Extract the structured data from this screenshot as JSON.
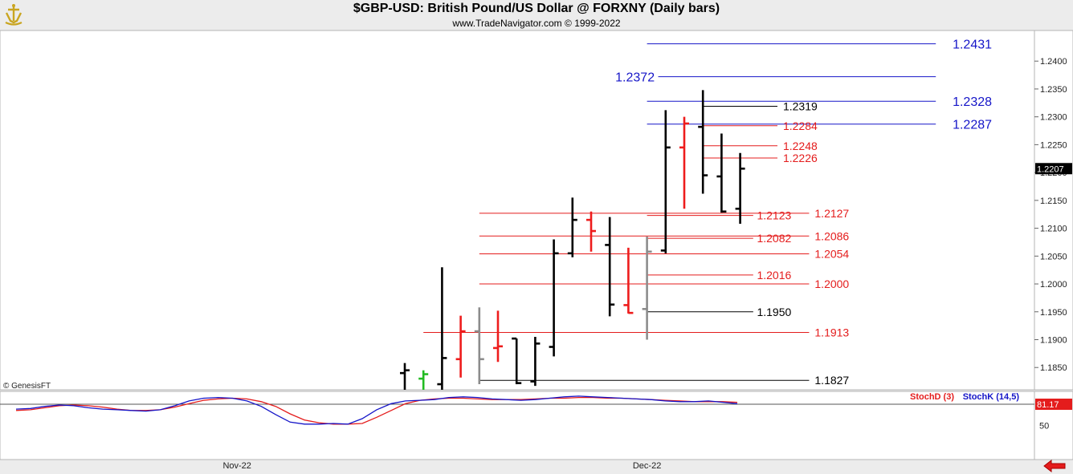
{
  "header": {
    "title": "$GBP-USD:  British Pound/US Dollar @ FORXNY  (Daily bars)",
    "subtitle": "www.TradeNavigator.com © 1999-2022",
    "logo_icon": "trade-navigator-logo-icon"
  },
  "colors": {
    "up_bar": "#000000",
    "down_bar": "#ee1c1c",
    "neutral_bar": "#8c8c8c",
    "blue_level": "#1515c8",
    "red_level": "#e41c1c",
    "black_level": "#000000",
    "stoch_d": "#e41c1c",
    "stoch_k": "#1515c8",
    "background": "#ffffff",
    "frame": "#ececec"
  },
  "chart_data": [
    {
      "type": "ohlc",
      "title": "$GBP-USD:  British Pound/US Dollar @ FORXNY  (Daily bars)",
      "watermark": "© GenesisFT",
      "ylim": [
        1.181,
        1.2455
      ],
      "yticks": [
        "1.1850",
        "1.1900",
        "1.1950",
        "1.2000",
        "1.2050",
        "1.2100",
        "1.2150",
        "1.2200",
        "1.2250",
        "1.2300",
        "1.2350",
        "1.2400"
      ],
      "last_price": "1.2207",
      "x_labels": [
        {
          "label": "Nov-22",
          "bar": -9
        },
        {
          "label": "Dec-22",
          "bar": 13
        }
      ],
      "bars": [
        {
          "o": 1.184,
          "h": 1.1858,
          "l": 1.181,
          "c": 1.1845,
          "color": "up"
        },
        {
          "o": 1.183,
          "h": 1.1845,
          "l": 1.181,
          "c": 1.1838,
          "color": "green"
        },
        {
          "o": 1.182,
          "h": 1.203,
          "l": 1.181,
          "c": 1.1867,
          "color": "up"
        },
        {
          "o": 1.1865,
          "h": 1.1943,
          "l": 1.1832,
          "c": 1.1915,
          "color": "down"
        },
        {
          "o": 1.1915,
          "h": 1.1958,
          "l": 1.182,
          "c": 1.1865,
          "color": "neutral"
        },
        {
          "o": 1.1885,
          "h": 1.1952,
          "l": 1.186,
          "c": 1.1888,
          "color": "down"
        },
        {
          "o": 1.1902,
          "h": 1.1902,
          "l": 1.182,
          "c": 1.1822,
          "color": "up"
        },
        {
          "o": 1.1825,
          "h": 1.1905,
          "l": 1.1817,
          "c": 1.1893,
          "color": "up"
        },
        {
          "o": 1.1887,
          "h": 1.208,
          "l": 1.187,
          "c": 1.2055,
          "color": "up"
        },
        {
          "o": 1.2055,
          "h": 1.2155,
          "l": 1.2048,
          "c": 1.2115,
          "color": "up"
        },
        {
          "o": 1.2115,
          "h": 1.213,
          "l": 1.2058,
          "c": 1.2095,
          "color": "down"
        },
        {
          "o": 1.207,
          "h": 1.212,
          "l": 1.1942,
          "c": 1.1963,
          "color": "up"
        },
        {
          "o": 1.1962,
          "h": 1.2065,
          "l": 1.1947,
          "c": 1.1948,
          "color": "down"
        },
        {
          "o": 1.1955,
          "h": 1.2085,
          "l": 1.19,
          "c": 1.2058,
          "color": "neutral"
        },
        {
          "o": 1.206,
          "h": 1.2312,
          "l": 1.2055,
          "c": 1.2245,
          "color": "up"
        },
        {
          "o": 1.2245,
          "h": 1.23,
          "l": 1.2135,
          "c": 1.2288,
          "color": "down"
        },
        {
          "o": 1.2282,
          "h": 1.2348,
          "l": 1.2162,
          "c": 1.2195,
          "color": "up"
        },
        {
          "o": 1.2193,
          "h": 1.227,
          "l": 1.2128,
          "c": 1.213,
          "color": "up"
        },
        {
          "o": 1.2135,
          "h": 1.2235,
          "l": 1.2108,
          "c": 1.2207,
          "color": "up"
        }
      ],
      "levels": [
        {
          "price": "1.2431",
          "color": "blue",
          "from_bar": 13,
          "to_bar": 28.5,
          "label_bar": 29.4,
          "size": 16
        },
        {
          "price": "1.2372",
          "color": "blue",
          "from_bar": 13.6,
          "to_bar": 28.5,
          "label_bar": 11.3,
          "size": 16
        },
        {
          "price": "1.2328",
          "color": "blue",
          "from_bar": 13,
          "to_bar": 28.5,
          "label_bar": 29.4,
          "size": 16
        },
        {
          "price": "1.2287",
          "color": "blue",
          "from_bar": 13,
          "to_bar": 28.5,
          "label_bar": 29.4,
          "size": 16
        },
        {
          "price": "1.2319",
          "color": "black",
          "from_bar": 16,
          "to_bar": 20,
          "label_bar": 20.3,
          "size": 14
        },
        {
          "price": "1.2284",
          "color": "red",
          "from_bar": 16,
          "to_bar": 20,
          "label_bar": 20.3,
          "size": 14
        },
        {
          "price": "1.2248",
          "color": "red",
          "from_bar": 16,
          "to_bar": 20,
          "label_bar": 20.3,
          "size": 14
        },
        {
          "price": "1.2226",
          "color": "red",
          "from_bar": 16,
          "to_bar": 20,
          "label_bar": 20.3,
          "size": 14
        },
        {
          "price": "1.2127",
          "color": "red",
          "from_bar": 4,
          "to_bar": 21.7,
          "label_bar": 22,
          "size": 14
        },
        {
          "price": "1.2123",
          "color": "red",
          "from_bar": 13,
          "to_bar": 18.7,
          "label_bar": 18.9,
          "size": 14
        },
        {
          "price": "1.2086",
          "color": "red",
          "from_bar": 4,
          "to_bar": 21.7,
          "label_bar": 22,
          "size": 14
        },
        {
          "price": "1.2082",
          "color": "red",
          "from_bar": 13,
          "to_bar": 18.7,
          "label_bar": 18.9,
          "size": 14
        },
        {
          "price": "1.2054",
          "color": "red",
          "from_bar": 4,
          "to_bar": 21.7,
          "label_bar": 22,
          "size": 14
        },
        {
          "price": "1.2016",
          "color": "red",
          "from_bar": 13,
          "to_bar": 18.7,
          "label_bar": 18.9,
          "size": 14
        },
        {
          "price": "1.2000",
          "color": "red",
          "from_bar": 4,
          "to_bar": 21.7,
          "label_bar": 22,
          "size": 14
        },
        {
          "price": "1.1950",
          "color": "black",
          "from_bar": 13,
          "to_bar": 18.7,
          "label_bar": 18.9,
          "size": 14
        },
        {
          "price": "1.1913",
          "color": "red",
          "from_bar": 1,
          "to_bar": 21.7,
          "label_bar": 22,
          "size": 14
        },
        {
          "price": "1.1827",
          "color": "black",
          "from_bar": 4,
          "to_bar": 21.7,
          "label_bar": 22,
          "size": 14
        }
      ]
    },
    {
      "type": "line",
      "legend": [
        "StochD (3)",
        "StochK (14,5)"
      ],
      "ylim": [
        0,
        100
      ],
      "yticks": [
        "50"
      ],
      "last_value": "81.17",
      "series": [
        {
          "name": "StochD (3)",
          "color": "red",
          "values": [
            72,
            73,
            76,
            79,
            80,
            79,
            77,
            74,
            72,
            72,
            73,
            77,
            82,
            87,
            89,
            90,
            89,
            85,
            78,
            67,
            58,
            54,
            52,
            52,
            53,
            62,
            72,
            82,
            87,
            89,
            90,
            90,
            89,
            88,
            88,
            88,
            89,
            90,
            90,
            91,
            91,
            90,
            90,
            89,
            88,
            87,
            86,
            85,
            85,
            85,
            84
          ]
        },
        {
          "name": "StochK (14,5)",
          "color": "blue",
          "values": [
            74,
            75,
            78,
            80,
            79,
            76,
            74,
            73,
            72,
            71,
            73,
            79,
            86,
            90,
            91,
            90,
            86,
            78,
            66,
            55,
            52,
            52,
            53,
            52,
            60,
            73,
            82,
            86,
            87,
            88,
            91,
            92,
            91,
            89,
            88,
            87,
            88,
            90,
            92,
            93,
            92,
            91,
            90,
            89,
            88,
            86,
            85,
            85,
            86,
            84,
            82
          ]
        }
      ]
    }
  ]
}
